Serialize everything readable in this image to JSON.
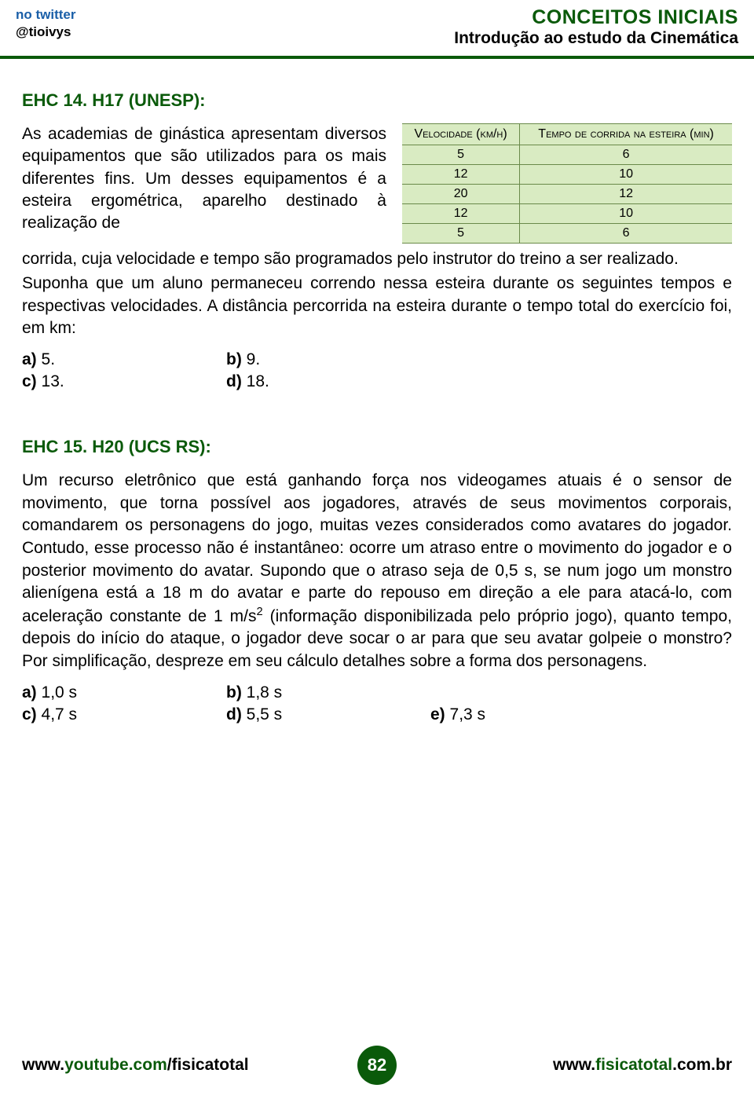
{
  "header": {
    "twitter_label": "no twitter",
    "handle": "@tioivys",
    "title": "CONCEITOS INICIAIS",
    "subtitle": "Introdução ao estudo da Cinemática"
  },
  "q1": {
    "title": "EHC 14. H17 (UNESP):",
    "para_narrow": "As academias de ginástica apresentam diversos equipamentos que são utilizados para os mais diferentes fins. Um desses equipamentos é a esteira ergométrica, aparelho destinado à realização de",
    "para_full_1": "corrida, cuja velocidade e tempo são programados pelo instrutor do treino a ser realizado.",
    "para_full_2": "Suponha que um aluno permaneceu correndo nessa esteira durante os seguintes tempos e respectivas velocidades. A distância percorrida na esteira durante o tempo total do exercício foi, em km:",
    "table": {
      "headers": [
        "Velocidade (km/h)",
        "Tempo de corrida na esteira (min)"
      ],
      "rows": [
        [
          "5",
          "6"
        ],
        [
          "12",
          "10"
        ],
        [
          "20",
          "12"
        ],
        [
          "12",
          "10"
        ],
        [
          "5",
          "6"
        ]
      ],
      "bg_color": "#d9ebc2",
      "border_color": "#6a8a4a"
    },
    "options": {
      "a": "5.",
      "b": "9.",
      "c": "13.",
      "d": "18."
    }
  },
  "q2": {
    "title": "EHC 15. H20 (UCS RS):",
    "text_before_sup": "Um recurso eletrônico que está ganhando força nos videogames atuais é o sensor de movimento, que torna possível aos jogadores, através de seus movimentos corporais, comandarem os personagens do jogo, muitas vezes considerados como avatares do jogador. Contudo, esse processo não é instantâneo: ocorre um atraso entre o movimento do jogador e o posterior movimento do avatar. Supondo que o atraso seja de 0,5 s, se num jogo um monstro alienígena está a 18 m do avatar e parte do repouso em direção a ele para atacá-lo, com aceleração constante de 1 m/s",
    "sup": "2",
    "text_after_sup": " (informação disponibilizada pelo próprio jogo), quanto tempo, depois do início do ataque, o jogador deve socar o ar para que seu avatar golpeie o monstro? Por simplificação, despreze em seu cálculo detalhes sobre a forma dos personagens.",
    "options": {
      "a": "1,0 s",
      "b": "1,8 s",
      "c": "4,7 s",
      "d": "5,5 s",
      "e": "7,3 s"
    }
  },
  "footer": {
    "left_plain": "www.",
    "left_green": "youtube.com",
    "left_plain2": "/fisicatotal",
    "page": "82",
    "right_plain": "www.",
    "right_green": "fisicatotal",
    "right_plain2": ".com.br"
  }
}
